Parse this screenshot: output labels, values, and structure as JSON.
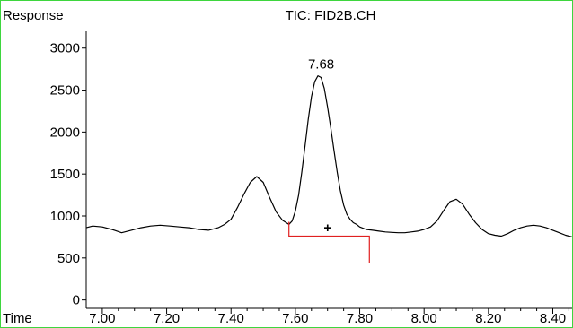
{
  "chart_data": {
    "type": "line",
    "title": "TIC: FID2B.CH",
    "ylabel": "Response_",
    "xlabel": "Time",
    "xlim": [
      6.95,
      8.46
    ],
    "ylim": [
      -100,
      3200
    ],
    "x_ticks": [
      7.0,
      7.2,
      7.4,
      7.6,
      7.8,
      8.0,
      8.2,
      8.4
    ],
    "x_tick_labels": [
      "7.00",
      "7.20",
      "7.40",
      "7.60",
      "7.80",
      "8.00",
      "8.20",
      "8.40"
    ],
    "y_ticks": [
      0,
      500,
      1000,
      1500,
      2000,
      2500,
      3000
    ],
    "y_tick_labels": [
      "0",
      "500",
      "1000",
      "1500",
      "2000",
      "2500",
      "3000"
    ],
    "peak_label": {
      "x": 7.68,
      "y": 2650,
      "text": "7.68"
    },
    "integration_baseline": {
      "x_start": 7.58,
      "x_end": 7.83,
      "y_start": 930,
      "y_end": 720,
      "y_bottom": 760,
      "color": "#e02020"
    },
    "marker": {
      "x": 7.7,
      "y": 860,
      "symbol": "+"
    },
    "series": [
      {
        "color": "#000000",
        "x": [
          6.95,
          6.97,
          7.0,
          7.03,
          7.06,
          7.09,
          7.12,
          7.15,
          7.18,
          7.21,
          7.24,
          7.27,
          7.3,
          7.33,
          7.36,
          7.38,
          7.4,
          7.42,
          7.44,
          7.46,
          7.48,
          7.5,
          7.52,
          7.54,
          7.56,
          7.58,
          7.59,
          7.6,
          7.61,
          7.62,
          7.63,
          7.64,
          7.65,
          7.66,
          7.67,
          7.68,
          7.69,
          7.7,
          7.71,
          7.72,
          7.73,
          7.74,
          7.75,
          7.76,
          7.77,
          7.78,
          7.79,
          7.8,
          7.82,
          7.84,
          7.86,
          7.88,
          7.9,
          7.92,
          7.94,
          7.96,
          7.98,
          8.0,
          8.02,
          8.04,
          8.06,
          8.08,
          8.1,
          8.12,
          8.14,
          8.16,
          8.18,
          8.2,
          8.22,
          8.24,
          8.26,
          8.28,
          8.3,
          8.32,
          8.34,
          8.36,
          8.38,
          8.4,
          8.42,
          8.44,
          8.46
        ],
        "y": [
          860,
          880,
          870,
          840,
          800,
          830,
          860,
          880,
          890,
          880,
          870,
          860,
          840,
          830,
          860,
          900,
          960,
          1100,
          1260,
          1400,
          1470,
          1400,
          1220,
          1050,
          950,
          900,
          940,
          1060,
          1250,
          1520,
          1830,
          2150,
          2420,
          2600,
          2670,
          2650,
          2520,
          2300,
          2050,
          1780,
          1520,
          1300,
          1130,
          1020,
          960,
          920,
          900,
          870,
          840,
          830,
          820,
          810,
          805,
          800,
          800,
          810,
          820,
          840,
          870,
          940,
          1060,
          1170,
          1200,
          1140,
          1020,
          920,
          840,
          790,
          770,
          760,
          790,
          830,
          860,
          880,
          890,
          880,
          860,
          830,
          800,
          770,
          750
        ]
      }
    ]
  }
}
